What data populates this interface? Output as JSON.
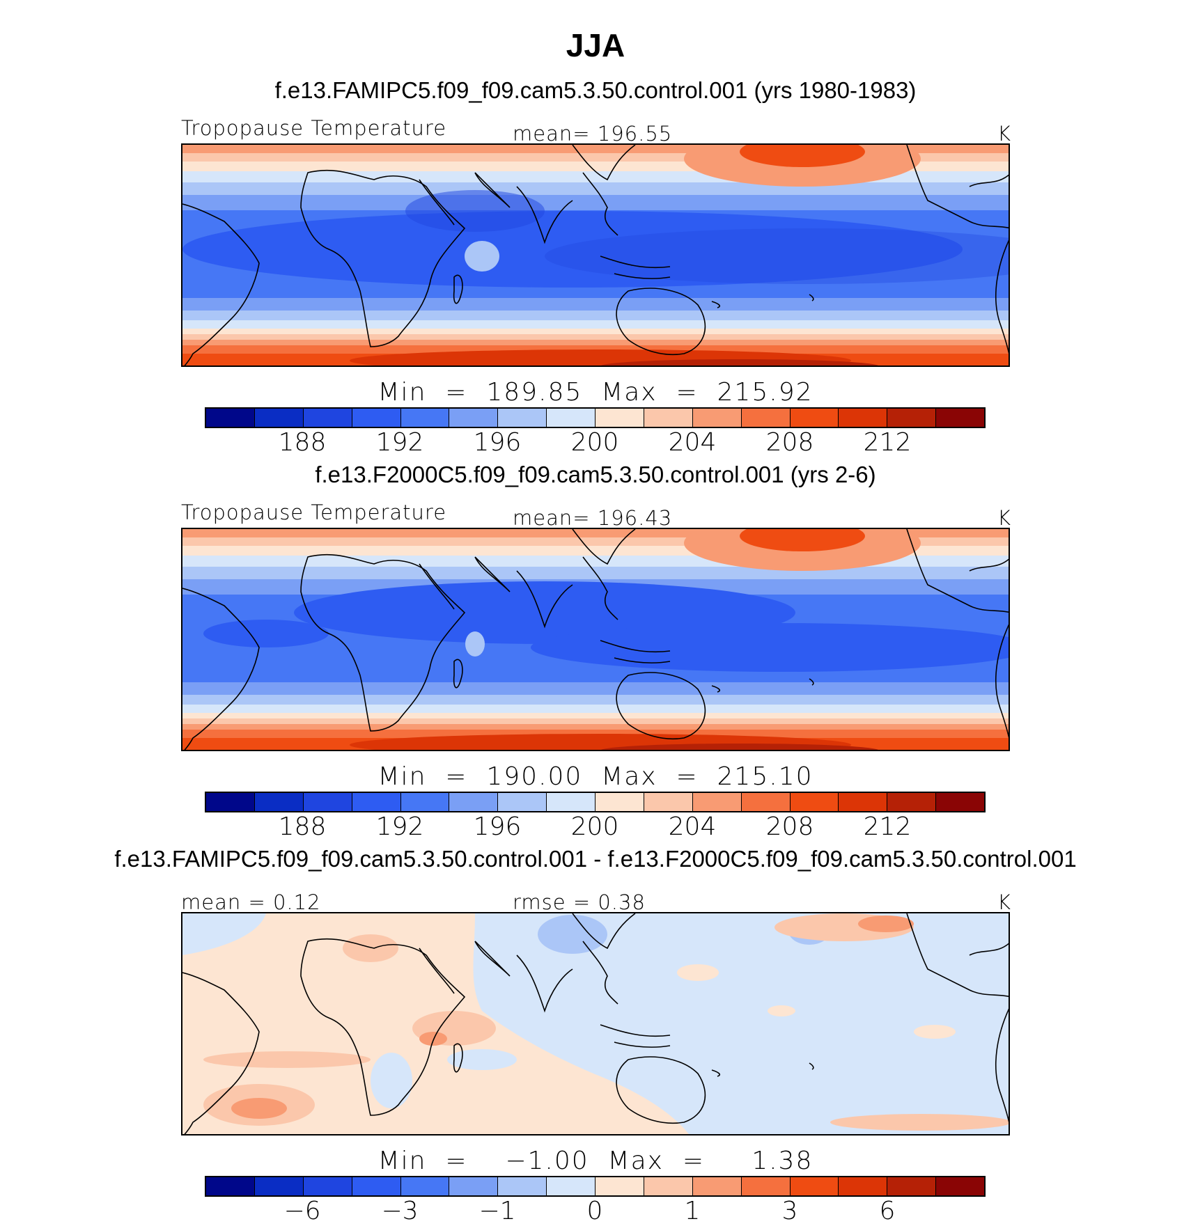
{
  "title": "JJA",
  "colors": {
    "palette": [
      "#00078a",
      "#0a2dc4",
      "#1f45e0",
      "#2e5cf2",
      "#4677f5",
      "#7a9ff5",
      "#abc6f7",
      "#d6e6fa",
      "#fde5d2",
      "#fbc7ab",
      "#f89b73",
      "#f5703e",
      "#ef4c12",
      "#dc3506",
      "#b52106",
      "#8a0505"
    ],
    "coast": "#000000"
  },
  "panels": [
    {
      "id": "p1",
      "title": "f.e13.FAMIPC5.f09_f09.cam5.3.50.control.001 (yrs 1980-1983)",
      "left_label": "Tropopause Temperature",
      "center_label": "mean=  196.55",
      "unit": "K",
      "min_max": "Min  =  189.85  Max  =  215.92",
      "tick_labels": [
        "188",
        "192",
        "196",
        "200",
        "204",
        "208",
        "212"
      ]
    },
    {
      "id": "p2",
      "title": "f.e13.F2000C5.f09_f09.cam5.3.50.control.001 (yrs 2-6)",
      "left_label": "Tropopause Temperature",
      "center_label": "mean=  196.43",
      "unit": "K",
      "min_max": "Min  =  190.00  Max  =  215.10",
      "tick_labels": [
        "188",
        "192",
        "196",
        "200",
        "204",
        "208",
        "212"
      ]
    },
    {
      "id": "p3",
      "title": "f.e13.FAMIPC5.f09_f09.cam5.3.50.control.001 - f.e13.F2000C5.f09_f09.cam5.3.50.control.001",
      "left_label": "mean  =     0.12",
      "center_label": "rmse  =     0.38",
      "unit": "K",
      "min_max": "Min  =    −1.00  Max  =     1.38",
      "tick_labels": [
        "−6",
        "−3",
        "−1",
        "0",
        "1",
        "3",
        "6"
      ]
    }
  ]
}
